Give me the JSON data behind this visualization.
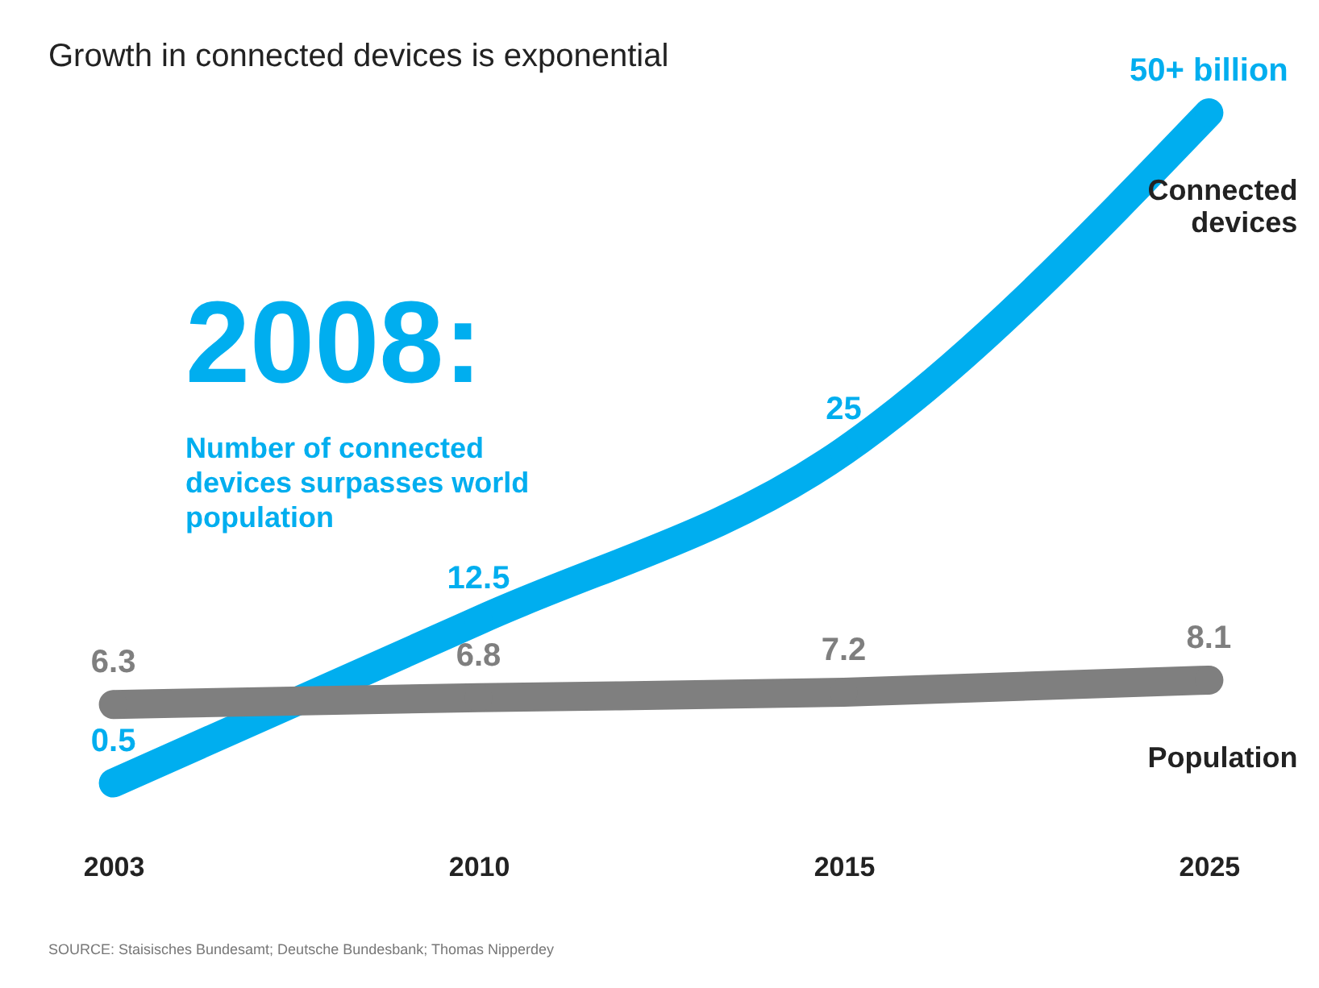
{
  "chart_data": {
    "type": "line",
    "title": "Growth in connected devices is exponential",
    "categories": [
      "2003",
      "2010",
      "2015",
      "2025"
    ],
    "series": [
      {
        "name": "Connected devices",
        "color": "#00aeef",
        "values": [
          0.5,
          12.5,
          25,
          50
        ],
        "value_labels": [
          "0.5",
          "12.5",
          "25",
          "50+ billion"
        ]
      },
      {
        "name": "Population",
        "color": "#7f7f7f",
        "values": [
          6.3,
          6.8,
          7.2,
          8.1
        ],
        "value_labels": [
          "6.3",
          "6.8",
          "7.2",
          "8.1"
        ]
      }
    ],
    "marker": "circle",
    "grid": false,
    "legend": false,
    "annotations": [
      "2008:",
      "Number of connected devices surpasses world population",
      "SOURCE: Staisisches Bundesamt; Deutsche Bundesbank; Thomas Nipperdey"
    ]
  }
}
